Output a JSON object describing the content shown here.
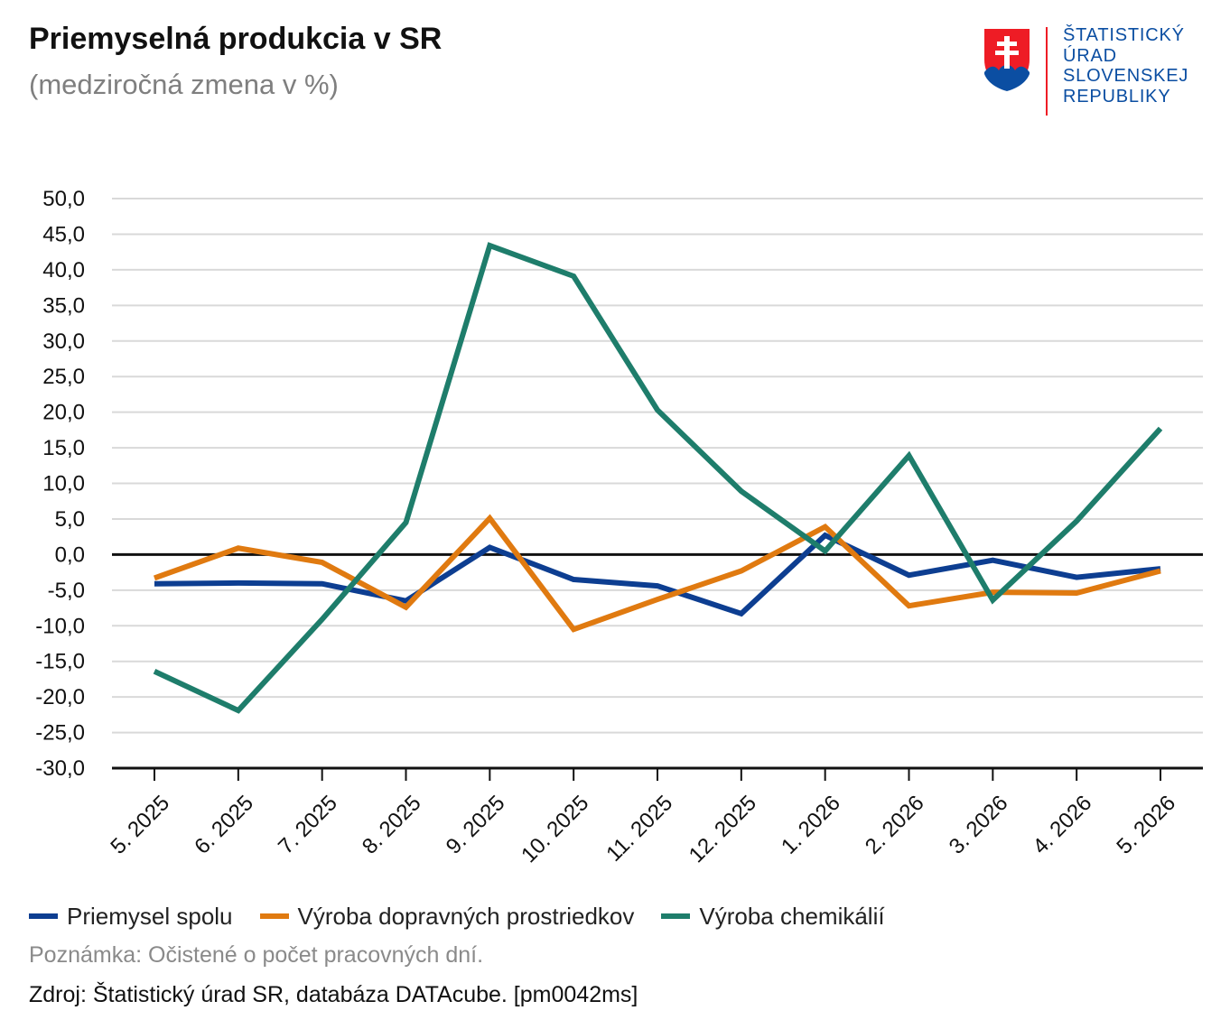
{
  "header": {
    "title": "Priemyselná produkcia v SR",
    "subtitle": "(medziročná zmena v %)"
  },
  "logo": {
    "lines": [
      "ŠTATISTICKÝ",
      "ÚRAD",
      "SLOVENSKEJ",
      "REPUBLIKY"
    ],
    "text_color": "#0b4ea2",
    "bar_color": "#ee1c25",
    "emblem": "slovak-coat-of-arms-icon"
  },
  "footer": {
    "note": "Poznámka: Očistené o počet pracovných dní.",
    "source": "Zdroj: Štatistický úrad SR, databáza DATAcube. [pm0042ms]"
  },
  "chart_data": {
    "type": "line",
    "title": "Priemyselná produkcia v SR",
    "subtitle": "(medziročná zmena v %)",
    "xlabel": "",
    "ylabel": "",
    "categories": [
      "5. 2025",
      "6. 2025",
      "7. 2025",
      "8. 2025",
      "9. 2025",
      "10. 2025",
      "11. 2025",
      "12. 2025",
      "1. 2026",
      "2. 2026",
      "3. 2026",
      "4. 2026",
      "5. 2026"
    ],
    "ylim": [
      -30,
      50
    ],
    "yticks": [
      "50,0",
      "45,0",
      "40,0",
      "35,0",
      "30,0",
      "25,0",
      "20,0",
      "15,0",
      "10,0",
      "5,0",
      "0,0",
      "-5,0",
      "-10,0",
      "-15,0",
      "-20,0",
      "-25,0",
      "-30,0"
    ],
    "grid": true,
    "legend": "bottom",
    "series": [
      {
        "name": "Priemysel spolu",
        "color": "#0d3e91",
        "values": [
          -4.1,
          -4.0,
          -4.1,
          -6.5,
          1.0,
          -3.5,
          -4.4,
          -8.3,
          2.7,
          -2.9,
          -0.8,
          -3.2,
          -2.0
        ]
      },
      {
        "name": "Výroba dopravných prostriedkov",
        "color": "#e07a10",
        "values": [
          -3.3,
          0.9,
          -1.1,
          -7.4,
          5.1,
          -10.5,
          -6.3,
          -2.3,
          3.9,
          -7.2,
          -5.3,
          -5.4,
          -2.3
        ]
      },
      {
        "name": "Výroba chemikálií",
        "color": "#1e7d6b",
        "values": [
          -16.4,
          -21.9,
          -9.1,
          4.5,
          43.4,
          39.1,
          20.3,
          8.9,
          0.5,
          13.9,
          -6.4,
          4.7,
          17.7
        ]
      }
    ]
  }
}
